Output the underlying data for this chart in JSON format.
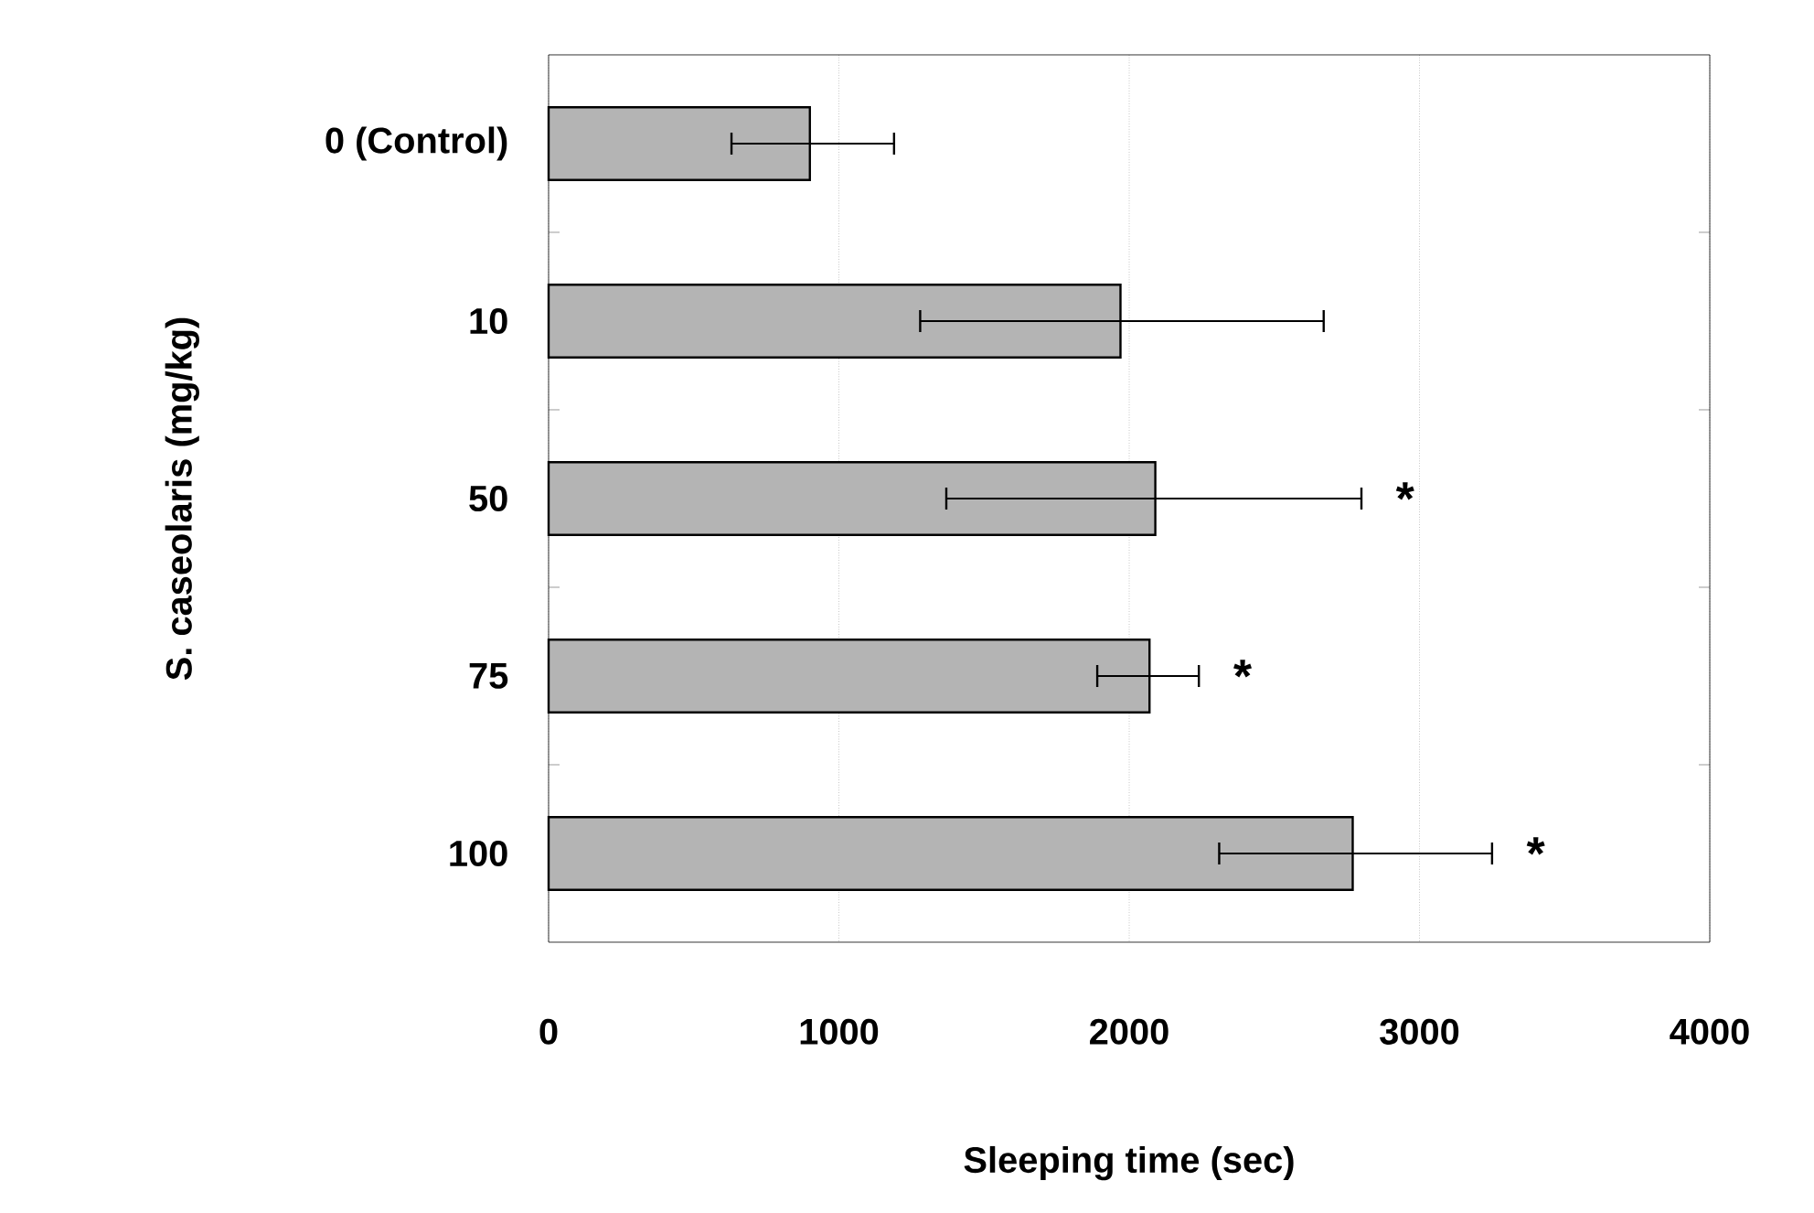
{
  "chart_data": {
    "type": "bar",
    "orientation": "horizontal",
    "xlabel": "Sleeping time (sec)",
    "ylabel": "S. caseolaris (mg/kg)",
    "categories": [
      "0 (Control)",
      "10",
      "50",
      "75",
      "100"
    ],
    "values": [
      900,
      1970,
      2090,
      2070,
      2770
    ],
    "errors": [
      [
        630,
        1190
      ],
      [
        1280,
        2670
      ],
      [
        1370,
        2800
      ],
      [
        1890,
        2240
      ],
      [
        2310,
        3250
      ]
    ],
    "color": "#b4b4b4",
    "xlim": [
      0,
      4000
    ],
    "xticks": [
      0,
      1000,
      2000,
      3000,
      4000
    ],
    "grid": "x",
    "annotations": [
      {
        "text": "*",
        "x": 2800,
        "y": "50"
      },
      {
        "text": "*",
        "x": 2240,
        "y": "75"
      },
      {
        "text": "*",
        "x": 3250,
        "y": "100"
      }
    ]
  }
}
